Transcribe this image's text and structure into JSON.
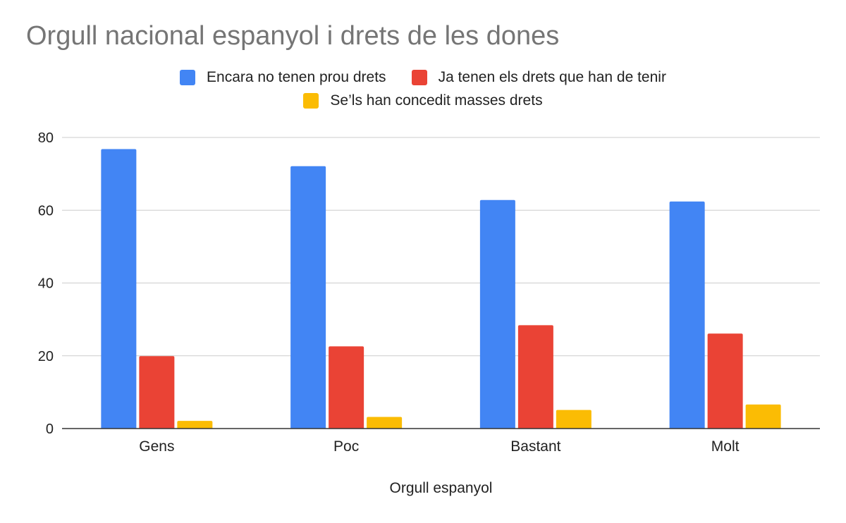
{
  "chart_data": {
    "type": "bar",
    "title": "Orgull nacional espanyol i drets de les dones",
    "xlabel": "Orgull espanyol",
    "ylabel": "",
    "categories": [
      "Gens",
      "Poc",
      "Bastant",
      "Molt"
    ],
    "series": [
      {
        "name": "Encara no tenen prou drets",
        "color": "#4285f4",
        "values": [
          76.8,
          72.1,
          62.8,
          62.4
        ]
      },
      {
        "name": "Ja tenen els drets que han de tenir",
        "color": "#ea4335",
        "values": [
          19.9,
          22.6,
          28.4,
          26.1
        ]
      },
      {
        "name": "Se’ls han concedit masses drets",
        "color": "#fbbc04",
        "values": [
          2.1,
          3.2,
          5.1,
          6.6
        ]
      }
    ],
    "ylim": [
      0,
      80
    ],
    "yticks": [
      "0",
      "20",
      "40",
      "60",
      "80"
    ],
    "grid": true,
    "legend_position": "top"
  }
}
